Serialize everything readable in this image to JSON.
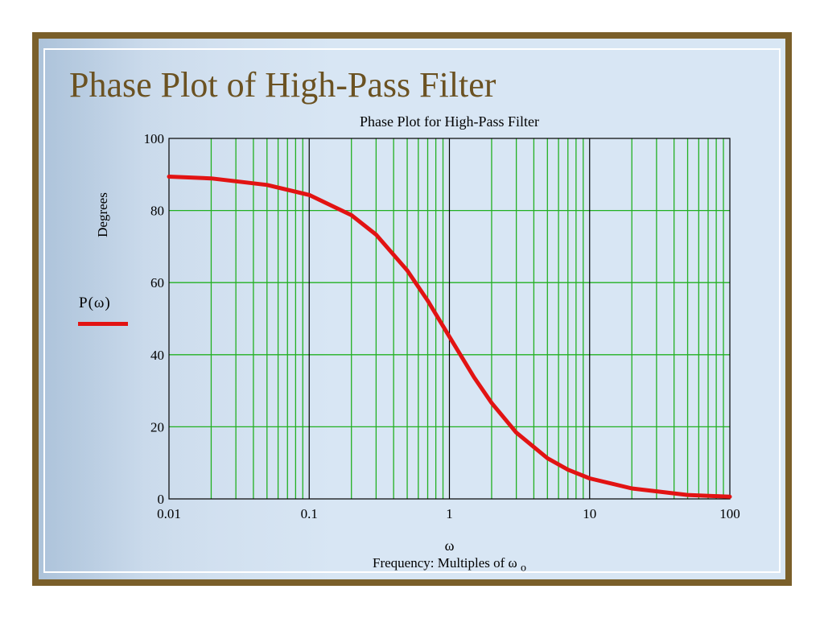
{
  "slide": {
    "title": "Phase Plot of High-Pass Filter"
  },
  "legend": {
    "label": "P(ω)",
    "color": "#e21313"
  },
  "colors": {
    "grid": "#22b022",
    "decade_line": "#000000",
    "curve": "#e21313",
    "title": "#6b5222",
    "frame": "#7a5f2a"
  },
  "chart_data": {
    "type": "line",
    "title": "Phase Plot for High-Pass Filter",
    "xlabel_symbol": "ω",
    "xlabel": "Frequency: Multiples of ω",
    "xlabel_subscript": "o",
    "ylabel": "Degrees",
    "xscale": "log",
    "xlim": [
      0.01,
      100
    ],
    "ylim": [
      0,
      100
    ],
    "grid": true,
    "x_ticks": [
      "0.01",
      "0.1",
      "1",
      "10",
      "100"
    ],
    "y_ticks": [
      "0",
      "20",
      "40",
      "60",
      "80",
      "100"
    ],
    "series": [
      {
        "name": "P(ω)",
        "x": [
          0.01,
          0.02,
          0.05,
          0.1,
          0.2,
          0.3,
          0.5,
          0.7,
          1,
          1.5,
          2,
          3,
          5,
          7,
          10,
          20,
          50,
          100
        ],
        "y": [
          89.4,
          88.9,
          87.1,
          84.3,
          78.7,
          73.3,
          63.4,
          55.0,
          45.0,
          33.7,
          26.6,
          18.4,
          11.3,
          8.1,
          5.7,
          2.9,
          1.1,
          0.6
        ]
      }
    ]
  }
}
